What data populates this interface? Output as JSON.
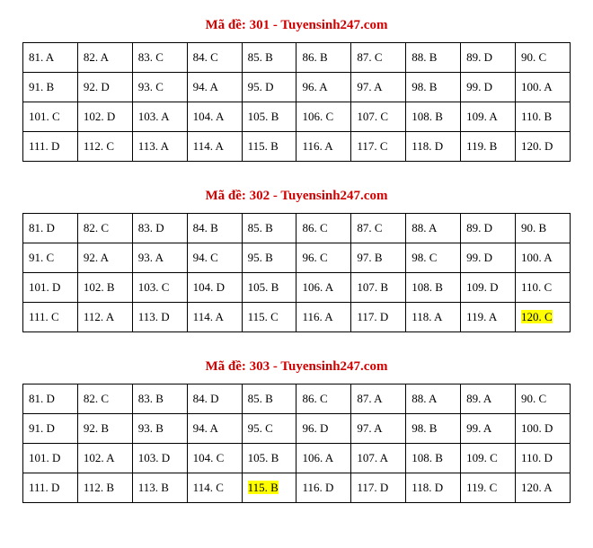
{
  "title_prefix": "Mã đề: ",
  "title_suffix": " - Tuyensinh247.com",
  "title_color": "#d00000",
  "highlight_color": "#ffff00",
  "border_color": "#000000",
  "background_color": "#ffffff",
  "font_family": "Times New Roman",
  "cell_fontsize": 13,
  "title_fontsize": 15,
  "sections": [
    {
      "code": "301",
      "start": 81,
      "answers": [
        "A",
        "A",
        "C",
        "C",
        "B",
        "B",
        "C",
        "B",
        "D",
        "C",
        "B",
        "D",
        "C",
        "A",
        "D",
        "A",
        "A",
        "B",
        "D",
        "A",
        "C",
        "D",
        "A",
        "A",
        "B",
        "C",
        "C",
        "B",
        "A",
        "B",
        "D",
        "C",
        "A",
        "A",
        "B",
        "A",
        "C",
        "D",
        "B",
        "D"
      ],
      "highlights": []
    },
    {
      "code": "302",
      "start": 81,
      "answers": [
        "D",
        "C",
        "D",
        "B",
        "B",
        "C",
        "C",
        "A",
        "D",
        "B",
        "C",
        "A",
        "A",
        "C",
        "B",
        "C",
        "B",
        "C",
        "D",
        "A",
        "D",
        "B",
        "C",
        "D",
        "B",
        "A",
        "B",
        "B",
        "D",
        "C",
        "C",
        "A",
        "D",
        "A",
        "C",
        "A",
        "D",
        "A",
        "A",
        "C"
      ],
      "highlights": [
        120
      ]
    },
    {
      "code": "303",
      "start": 81,
      "answers": [
        "D",
        "C",
        "B",
        "D",
        "B",
        "C",
        "A",
        "A",
        "A",
        "C",
        "D",
        "B",
        "B",
        "A",
        "C",
        "D",
        "A",
        "B",
        "A",
        "D",
        "D",
        "A",
        "D",
        "C",
        "B",
        "A",
        "A",
        "B",
        "C",
        "D",
        "D",
        "B",
        "B",
        "C",
        "B",
        "D",
        "D",
        "D",
        "C",
        "A"
      ],
      "highlights": [
        115
      ]
    }
  ]
}
